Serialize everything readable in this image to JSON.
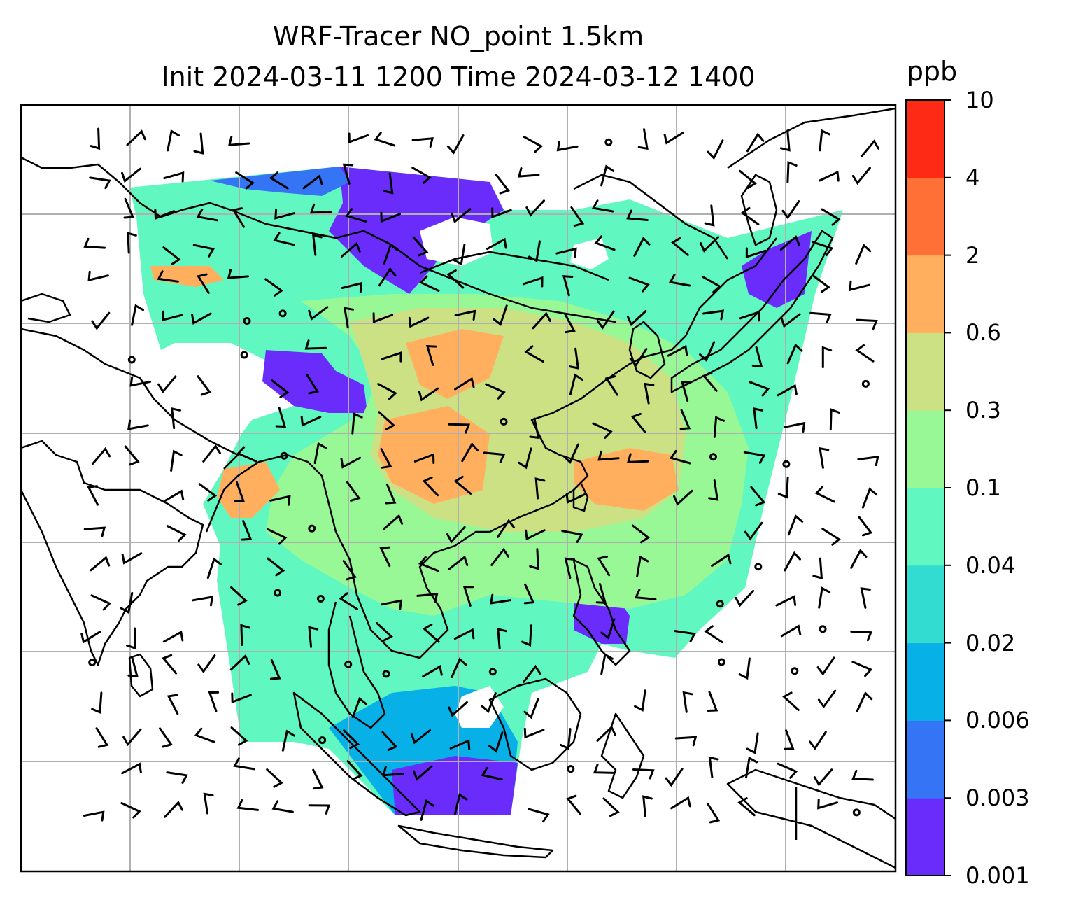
{
  "figure": {
    "title_line1": "WRF-Tracer NO_point 1.5km",
    "title_line2": "Init 2024-03-11 1200 Time 2024-03-12 1400"
  },
  "colorbar": {
    "unit": "ppb",
    "levels": [
      "0.001",
      "0.003",
      "0.006",
      "0.02",
      "0.04",
      "0.1",
      "0.3",
      "0.6",
      "2",
      "4",
      "10"
    ],
    "colors": [
      "#6a2cfb",
      "#3574f4",
      "#08b0e8",
      "#33dcd0",
      "#60f7c0",
      "#99f896",
      "#cce184",
      "#ffaf5e",
      "#ff7036",
      "#ff2a15"
    ]
  },
  "map": {
    "frame_color": "#000000",
    "gridline_color": "#b0b0b0",
    "coastline_color": "#000000",
    "wind_barb_color": "#000000"
  }
}
